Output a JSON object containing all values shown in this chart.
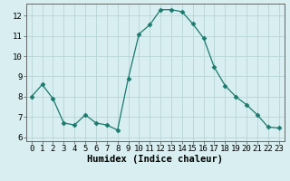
{
  "x": [
    0,
    1,
    2,
    3,
    4,
    5,
    6,
    7,
    8,
    9,
    10,
    11,
    12,
    13,
    14,
    15,
    16,
    17,
    18,
    19,
    20,
    21,
    22,
    23
  ],
  "y": [
    8.0,
    8.6,
    7.9,
    6.7,
    6.6,
    7.1,
    6.7,
    6.6,
    6.35,
    8.9,
    11.1,
    11.55,
    12.3,
    12.3,
    12.2,
    11.6,
    10.9,
    9.45,
    8.55,
    8.0,
    7.6,
    7.1,
    6.5,
    6.45
  ],
  "line_color": "#1a7a6e",
  "marker": "D",
  "marker_size": 2.5,
  "bg_color": "#d8eef0",
  "grid_color": "#b8d4d6",
  "grid_major_color": "#c8c8b0",
  "xlabel": "Humidex (Indice chaleur)",
  "ylim": [
    5.8,
    12.6
  ],
  "xlim": [
    -0.5,
    23.5
  ],
  "yticks": [
    6,
    7,
    8,
    9,
    10,
    11,
    12
  ],
  "xticks": [
    0,
    1,
    2,
    3,
    4,
    5,
    6,
    7,
    8,
    9,
    10,
    11,
    12,
    13,
    14,
    15,
    16,
    17,
    18,
    19,
    20,
    21,
    22,
    23
  ],
  "tick_fontsize": 6.5,
  "xlabel_fontsize": 7.5
}
